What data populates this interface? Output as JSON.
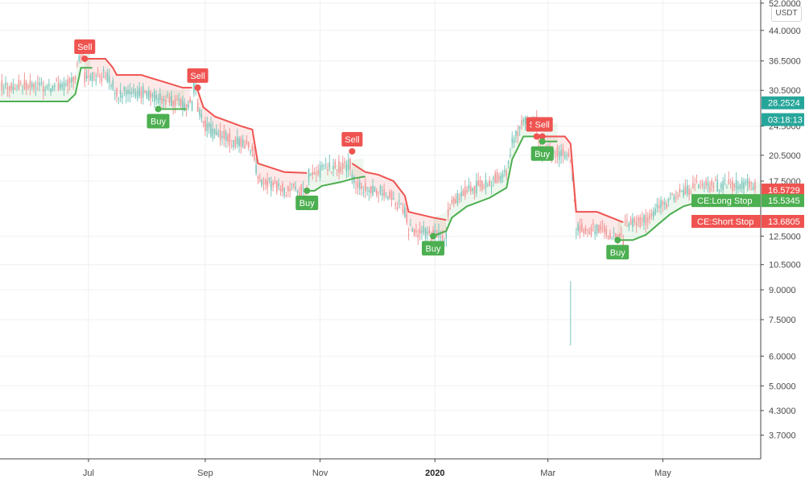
{
  "currency": "USDT",
  "chart_data": {
    "type": "line",
    "y_scale": "log",
    "ylim": [
      3.2,
      53
    ],
    "y_ticks": [
      "52.0000",
      "44.0000",
      "36.5000",
      "30.5000",
      "24.5000",
      "20.5000",
      "17.5000",
      "12.5000",
      "10.5000",
      "9.0000",
      "7.5000",
      "6.0000",
      "5.0000",
      "4.3000",
      "3.7000"
    ],
    "y_tick_values": [
      52,
      44,
      36.5,
      30.5,
      24.5,
      20.5,
      17.5,
      12.5,
      10.5,
      9,
      7.5,
      6,
      5,
      4.3,
      3.7
    ],
    "x_range": [
      "2019-05-15",
      "2020-06-22"
    ],
    "x_ticks": [
      {
        "date": "2019-07-01",
        "label": "Jul",
        "bold": false
      },
      {
        "date": "2019-09-01",
        "label": "Sep",
        "bold": false
      },
      {
        "date": "2019-11-01",
        "label": "Nov",
        "bold": false
      },
      {
        "date": "2020-01-01",
        "label": "2020",
        "bold": true
      },
      {
        "date": "2020-03-01",
        "label": "Mar",
        "bold": false
      },
      {
        "date": "2020-05-01",
        "label": "May",
        "bold": false
      }
    ],
    "series": [
      {
        "name": "CE:Long Stop",
        "color": "#4caf50",
        "segments": [
          [
            [
              "2019-05-15",
              28.5
            ],
            [
              "2019-06-20",
              28.5
            ],
            [
              "2019-06-24",
              29.8
            ],
            [
              "2019-06-27",
              35.0
            ],
            [
              "2019-07-03",
              35.0
            ]
          ],
          [
            [
              "2019-08-07",
              27.2
            ],
            [
              "2019-08-22",
              27.2
            ]
          ],
          [
            [
              "2019-10-25",
              16.5
            ],
            [
              "2019-10-29",
              16.5
            ],
            [
              "2019-11-02",
              17.0
            ],
            [
              "2019-11-12",
              17.4
            ],
            [
              "2019-11-19",
              17.8
            ],
            [
              "2019-11-25",
              18.0
            ]
          ],
          [
            [
              "2019-12-31",
              12.5
            ],
            [
              "2020-01-07",
              12.9
            ],
            [
              "2020-01-10",
              14.0
            ],
            [
              "2020-01-18",
              15.0
            ],
            [
              "2020-01-30",
              15.8
            ],
            [
              "2020-02-08",
              16.8
            ],
            [
              "2020-02-11",
              20.0
            ],
            [
              "2020-02-17",
              23.0
            ],
            [
              "2020-02-24",
              23.0
            ]
          ],
          [
            [
              "2020-02-27",
              22.3
            ],
            [
              "2020-03-06",
              22.3
            ]
          ],
          [
            [
              "2020-04-07",
              12.2
            ],
            [
              "2020-04-15",
              12.2
            ],
            [
              "2020-04-22",
              12.6
            ],
            [
              "2020-04-29",
              13.5
            ],
            [
              "2020-05-05",
              14.3
            ],
            [
              "2020-05-12",
              15.0
            ],
            [
              "2020-05-22",
              15.5
            ],
            [
              "2020-06-22",
              15.5345
            ]
          ]
        ]
      },
      {
        "name": "CE:Short Stop",
        "color": "#ef5350",
        "segments": [
          [
            [
              "2019-06-29",
              37.0
            ],
            [
              "2019-07-10",
              37.0
            ],
            [
              "2019-07-14",
              35.0
            ],
            [
              "2019-07-16",
              33.5
            ],
            [
              "2019-07-29",
              33.5
            ],
            [
              "2019-08-11",
              32.0
            ],
            [
              "2019-08-20",
              31.0
            ],
            [
              "2019-08-25",
              31.0
            ]
          ],
          [
            [
              "2019-08-28",
              30.5
            ],
            [
              "2019-08-31",
              27.5
            ],
            [
              "2019-09-06",
              26.0
            ],
            [
              "2019-09-20",
              24.5
            ],
            [
              "2019-09-26",
              24.0
            ],
            [
              "2019-09-29",
              19.5
            ],
            [
              "2019-10-13",
              18.5
            ],
            [
              "2019-10-25",
              18.4
            ]
          ],
          [
            [
              "2019-11-18",
              19.5
            ],
            [
              "2019-11-25",
              18.5
            ],
            [
              "2019-12-02",
              18.2
            ],
            [
              "2019-12-10",
              17.5
            ],
            [
              "2019-12-16",
              16.0
            ],
            [
              "2019-12-18",
              14.5
            ],
            [
              "2019-12-31",
              14.0
            ],
            [
              "2020-01-07",
              13.8
            ]
          ],
          [
            [
              "2020-02-27",
              23.0
            ],
            [
              "2020-03-10",
              23.0
            ],
            [
              "2020-03-13",
              22.0
            ],
            [
              "2020-03-16",
              14.5
            ],
            [
              "2020-03-27",
              14.5
            ],
            [
              "2020-04-10",
              13.6
            ]
          ]
        ]
      }
    ],
    "signals": [
      {
        "type": "Sell",
        "date": "2019-06-29",
        "value": 37.0
      },
      {
        "type": "Buy",
        "date": "2019-08-07",
        "value": 27.2
      },
      {
        "type": "Sell",
        "date": "2019-08-28",
        "value": 31.0
      },
      {
        "type": "Buy",
        "date": "2019-10-25",
        "value": 16.5
      },
      {
        "type": "Sell",
        "date": "2019-11-18",
        "value": 21.0
      },
      {
        "type": "Buy",
        "date": "2019-12-31",
        "value": 12.5
      },
      {
        "type": "Sell",
        "date": "2020-02-24",
        "value": 23.0
      },
      {
        "type": "Sell",
        "date": "2020-02-27",
        "value": 23.0
      },
      {
        "type": "Buy",
        "date": "2020-02-27",
        "value": 22.3
      },
      {
        "type": "Buy",
        "date": "2020-04-07",
        "value": 12.2
      }
    ],
    "price_tags": [
      {
        "label": "",
        "value_text": "28.2524",
        "value": 28.2524,
        "color": "#26a69a"
      },
      {
        "label": "",
        "value_text": "03:18:13",
        "value": 25.5,
        "color": "#26a69a"
      },
      {
        "label": "",
        "value_text": "16.5729",
        "value": 16.5729,
        "color": "#ef5350"
      },
      {
        "label": "CE:Long Stop",
        "value_text": "15.5345",
        "value": 15.5345,
        "color": "#4caf50"
      },
      {
        "label": "CE:Short Stop",
        "value_text": "13.6805",
        "value": 13.6805,
        "color": "#ef5350"
      }
    ],
    "grid": true
  }
}
